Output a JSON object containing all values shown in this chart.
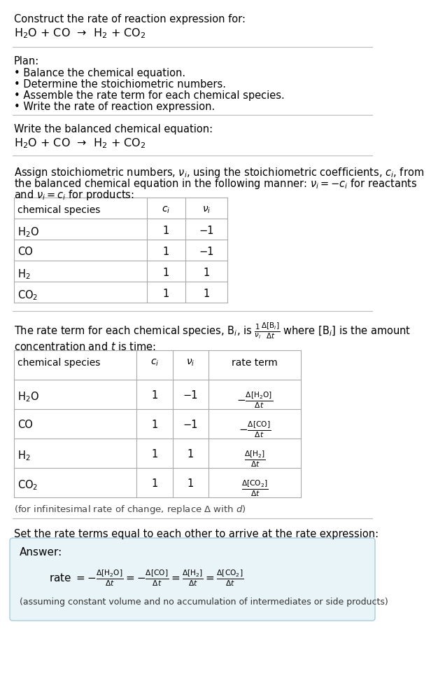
{
  "bg_color": "#ffffff",
  "text_color": "#000000",
  "section_bg": "#e8f4f8",
  "title_text": "Construct the rate of reaction expression for:",
  "reaction_eq": "H$_2$O + CO  →  H$_2$ + CO$_2$",
  "plan_header": "Plan:",
  "plan_items": [
    "• Balance the chemical equation.",
    "• Determine the stoichiometric numbers.",
    "• Assemble the rate term for each chemical species.",
    "• Write the rate of reaction expression."
  ],
  "balanced_header": "Write the balanced chemical equation:",
  "balanced_eq": "H$_2$O + CO  →  H$_2$ + CO$_2$",
  "assign_text1": "Assign stoichiometric numbers, $\\nu_i$, using the stoichiometric coefficients, $c_i$, from",
  "assign_text2": "the balanced chemical equation in the following manner: $\\nu_i = -c_i$ for reactants",
  "assign_text3": "and $\\nu_i = c_i$ for products:",
  "table1_headers": [
    "chemical species",
    "$c_i$",
    "$\\nu_i$"
  ],
  "table1_rows": [
    [
      "H$_2$O",
      "1",
      "−1"
    ],
    [
      "CO",
      "1",
      "−1"
    ],
    [
      "H$_2$",
      "1",
      "1"
    ],
    [
      "CO$_2$",
      "1",
      "1"
    ]
  ],
  "rate_text1": "The rate term for each chemical species, B$_i$, is $\\frac{1}{\\nu_i}\\frac{\\Delta[\\mathrm{B}_i]}{\\Delta t}$ where [B$_i$] is the amount",
  "rate_text2": "concentration and $t$ is time:",
  "table2_headers": [
    "chemical species",
    "$c_i$",
    "$\\nu_i$",
    "rate term"
  ],
  "table2_rows": [
    [
      "H$_2$O",
      "1",
      "−1",
      "$-\\frac{\\Delta[\\mathrm{H_2O}]}{\\Delta t}$"
    ],
    [
      "CO",
      "1",
      "−1",
      "$-\\frac{\\Delta[\\mathrm{CO}]}{\\Delta t}$"
    ],
    [
      "H$_2$",
      "1",
      "1",
      "$\\frac{\\Delta[\\mathrm{H_2}]}{\\Delta t}$"
    ],
    [
      "CO$_2$",
      "1",
      "1",
      "$\\frac{\\Delta[\\mathrm{CO_2}]}{\\Delta t}$"
    ]
  ],
  "infinitesimal_note": "(for infinitesimal rate of change, replace Δ with $d$)",
  "set_text": "Set the rate terms equal to each other to arrive at the rate expression:",
  "answer_label": "Answer:",
  "rate_expression": "rate $= -\\frac{\\Delta[\\mathrm{H_2O}]}{\\Delta t} = -\\frac{\\Delta[\\mathrm{CO}]}{\\Delta t} = \\frac{\\Delta[\\mathrm{H_2}]}{\\Delta t} = \\frac{\\Delta[\\mathrm{CO_2}]}{\\Delta t}$",
  "assumption_note": "(assuming constant volume and no accumulation of intermediates or side products)"
}
